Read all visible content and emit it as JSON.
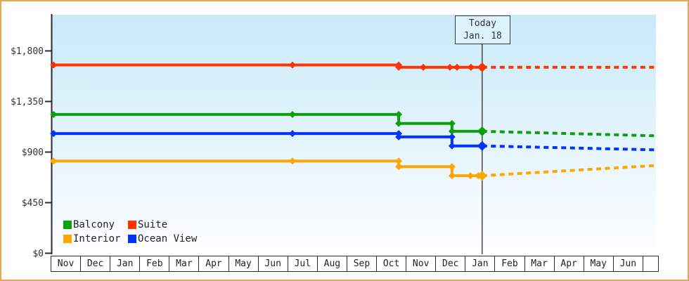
{
  "frame": {
    "border_color": "#e7a558"
  },
  "chart_data": {
    "type": "line",
    "description": "Cruise cabin price history by category with dashed future price projection",
    "plot_background": {
      "top_color": "#c9e9f9",
      "bottom_color": "#fdfeff"
    },
    "axis_color": "#2b2b2b",
    "y_axis": {
      "ticks": [
        {
          "label": "$1,800",
          "value": 1800
        },
        {
          "label": "$1,350",
          "value": 1350
        },
        {
          "label": "$900",
          "value": 900
        },
        {
          "label": "$450",
          "value": 450
        },
        {
          "label": "$0",
          "value": 0
        }
      ],
      "range": [
        0,
        2100
      ],
      "grid": "off"
    },
    "x_axis": {
      "months": [
        "Nov",
        "Dec",
        "Jan",
        "Feb",
        "Mar",
        "Apr",
        "May",
        "Jun",
        "Jul",
        "Aug",
        "Sep",
        "Oct",
        "Nov",
        "Dec",
        "Jan",
        "Feb",
        "Mar",
        "Apr",
        "May",
        "Jun"
      ],
      "unit": "month index from first Nov"
    },
    "today": {
      "line1": "Today",
      "line2": "Jan. 18",
      "month_index": 14.58,
      "line_color": "#3a3a3a",
      "box_background": "#dcf3fd"
    },
    "legend": [
      {
        "label": "Balcony",
        "color": "#0aa00a"
      },
      {
        "label": "Suite",
        "color": "#ff3300"
      },
      {
        "label": "Interior",
        "color": "#ffa600"
      },
      {
        "label": "Ocean View",
        "color": "#0033ff"
      }
    ],
    "legend_position": "bottom-left inside plot",
    "series": [
      {
        "name": "Suite",
        "color": "#ff3300",
        "solid": [
          [
            0.1,
            1675
          ],
          [
            8.17,
            1675
          ],
          [
            11.76,
            1675
          ],
          [
            11.76,
            1655
          ],
          [
            14.58,
            1655
          ]
        ],
        "markers": [
          [
            0.1,
            1675
          ],
          [
            8.17,
            1675
          ],
          [
            11.76,
            1675
          ],
          [
            11.76,
            1655
          ],
          [
            12.59,
            1655
          ],
          [
            13.49,
            1655
          ],
          [
            13.73,
            1655
          ],
          [
            14.2,
            1655
          ]
        ],
        "today_value": 1655,
        "projection": [
          [
            14.58,
            1655
          ],
          [
            20.4,
            1655
          ]
        ]
      },
      {
        "name": "Balcony",
        "color": "#0aa00a",
        "solid": [
          [
            0.1,
            1235
          ],
          [
            8.17,
            1235
          ],
          [
            11.76,
            1235
          ],
          [
            11.76,
            1155
          ],
          [
            13.56,
            1155
          ],
          [
            13.56,
            1085
          ],
          [
            14.58,
            1085
          ]
        ],
        "markers": [
          [
            0.1,
            1235
          ],
          [
            8.17,
            1235
          ],
          [
            11.76,
            1235
          ],
          [
            11.76,
            1155
          ],
          [
            13.56,
            1155
          ],
          [
            13.56,
            1085
          ]
        ],
        "today_value": 1085,
        "projection": [
          [
            14.58,
            1085
          ],
          [
            20.4,
            1045
          ]
        ]
      },
      {
        "name": "Ocean View",
        "color": "#0033ff",
        "solid": [
          [
            0.1,
            1065
          ],
          [
            8.17,
            1065
          ],
          [
            11.76,
            1065
          ],
          [
            11.76,
            1035
          ],
          [
            13.56,
            1035
          ],
          [
            13.56,
            955
          ],
          [
            14.58,
            955
          ]
        ],
        "markers": [
          [
            0.1,
            1065
          ],
          [
            8.17,
            1065
          ],
          [
            11.76,
            1065
          ],
          [
            11.76,
            1035
          ],
          [
            13.56,
            1035
          ],
          [
            13.56,
            955
          ]
        ],
        "today_value": 955,
        "projection": [
          [
            14.58,
            955
          ],
          [
            20.4,
            920
          ]
        ]
      },
      {
        "name": "Interior",
        "color": "#ffa600",
        "solid": [
          [
            0.1,
            820
          ],
          [
            8.17,
            820
          ],
          [
            11.76,
            820
          ],
          [
            11.76,
            770
          ],
          [
            13.56,
            770
          ],
          [
            13.56,
            690
          ],
          [
            14.58,
            690
          ]
        ],
        "markers": [
          [
            0.1,
            820
          ],
          [
            8.17,
            820
          ],
          [
            11.76,
            820
          ],
          [
            11.76,
            770
          ],
          [
            13.56,
            770
          ],
          [
            13.56,
            690
          ],
          [
            14.18,
            690
          ],
          [
            14.45,
            690
          ]
        ],
        "today_value": 690,
        "projection": [
          [
            14.58,
            690
          ],
          [
            20.4,
            780
          ]
        ]
      }
    ]
  }
}
